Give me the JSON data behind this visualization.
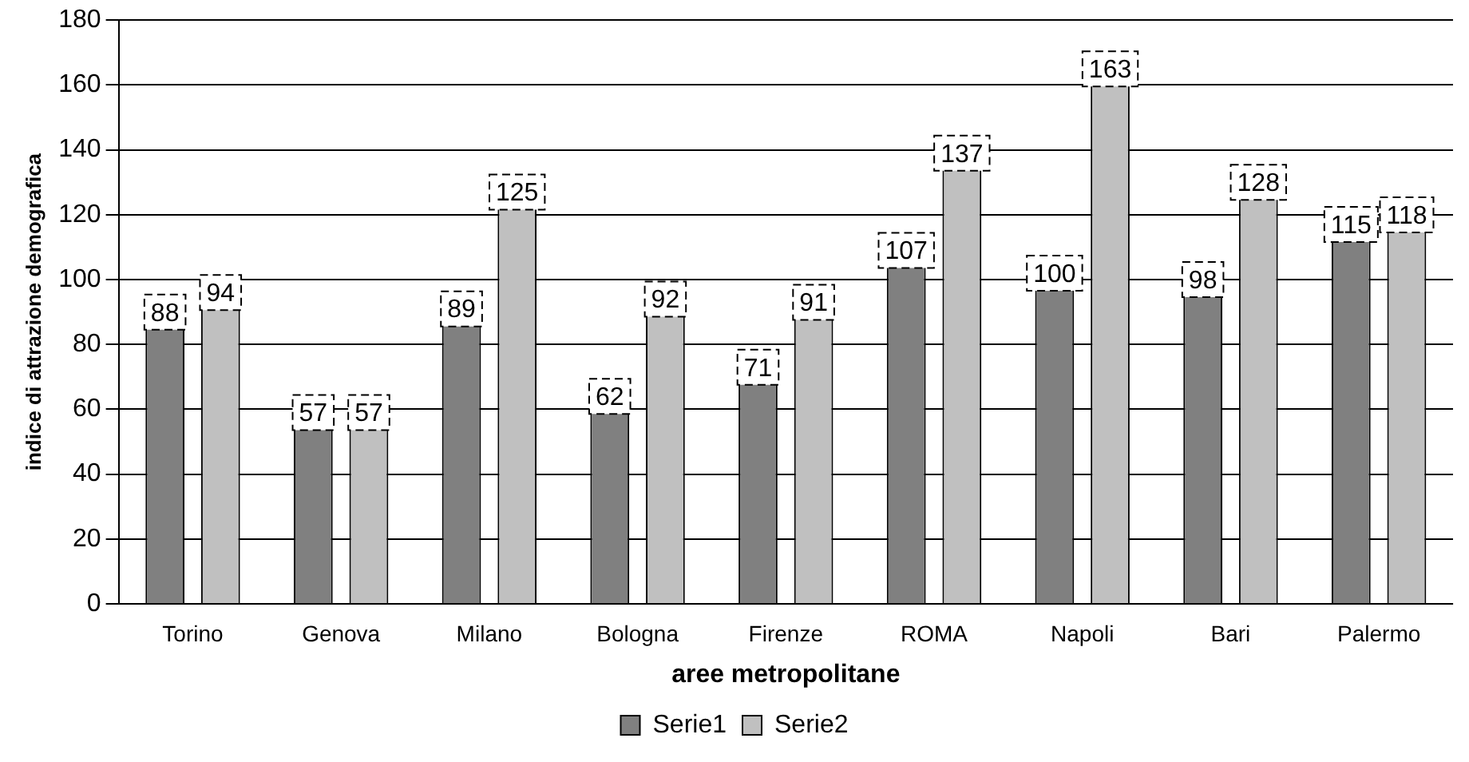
{
  "chart_data": {
    "type": "bar",
    "xlabel": "aree metropolitane",
    "ylabel": "indice di attrazione demografica",
    "categories": [
      "Torino",
      "Genova",
      "Milano",
      "Bologna",
      "Firenze",
      "ROMA",
      "Napoli",
      "Bari",
      "Palermo"
    ],
    "series": [
      {
        "name": "Serie1",
        "color": "#808080",
        "values": [
          88,
          57,
          89,
          62,
          71,
          107,
          100,
          98,
          115
        ]
      },
      {
        "name": "Serie2",
        "color": "#c0c0c0",
        "values": [
          94,
          57,
          125,
          92,
          91,
          137,
          163,
          128,
          118
        ]
      }
    ],
    "ylim": [
      0,
      180
    ],
    "yticks": [
      0,
      20,
      40,
      60,
      80,
      100,
      120,
      140,
      160,
      180
    ],
    "grid": "y",
    "legend": "bottom",
    "data_labels": true
  }
}
